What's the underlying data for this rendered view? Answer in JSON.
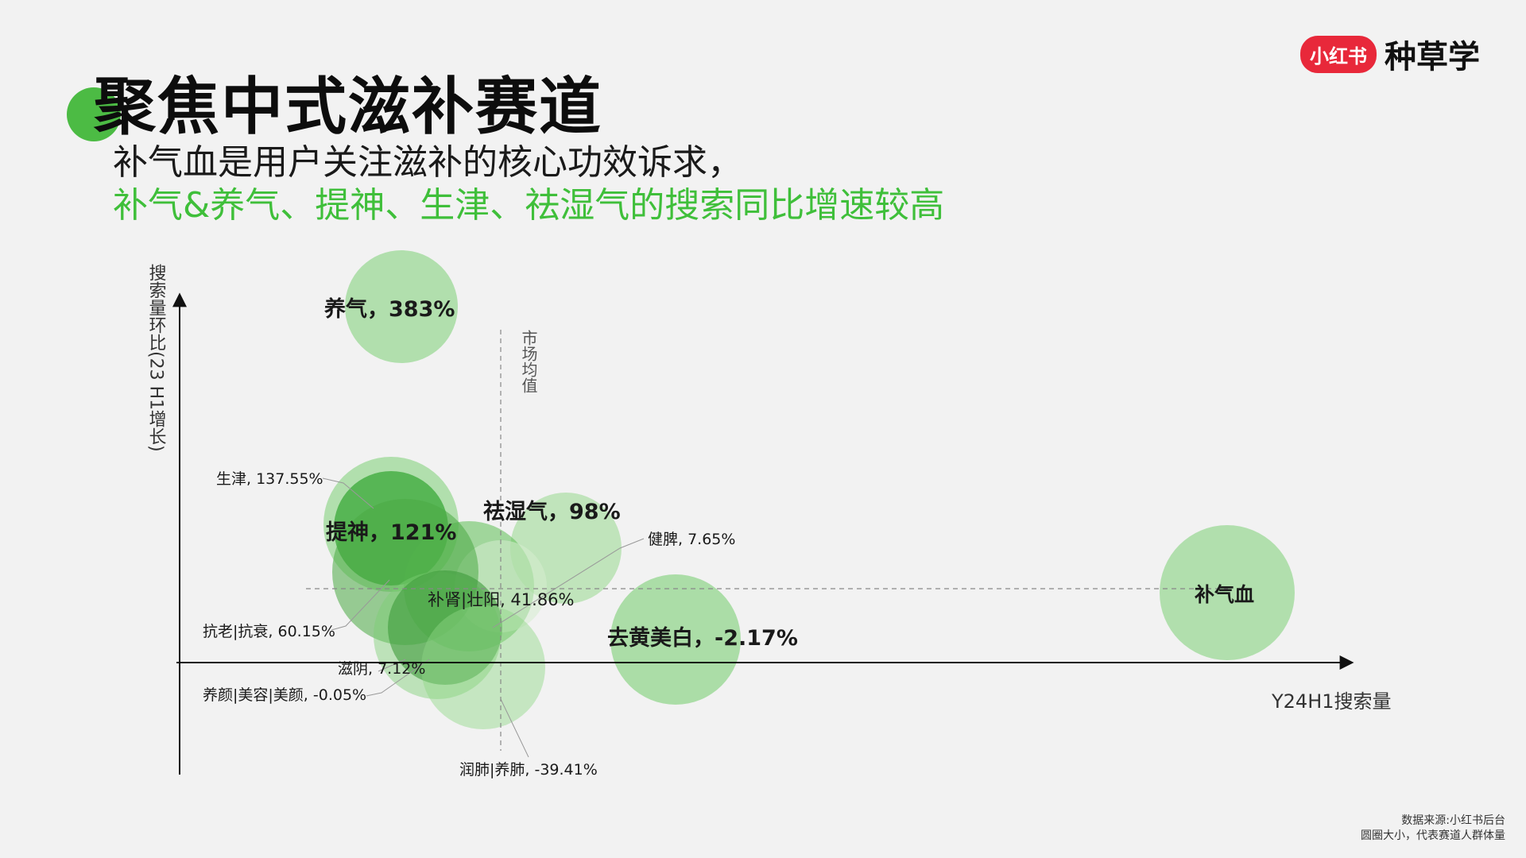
{
  "header": {
    "title": "聚焦中式滋补赛道",
    "subtitle_line1": "补气血是用户关注滋补的核心功效诉求，",
    "subtitle_line2": "补气&养气、提神、生津、祛湿气的搜索同比增速较高"
  },
  "brand": {
    "badge": "小红书",
    "name": "种草学"
  },
  "footnote": {
    "source": "数据来源:小红书后台",
    "note": "圆圈大小，代表赛道人群体量"
  },
  "colors": {
    "accent_green": "#3fbf3a",
    "brand_red": "#e8283a"
  },
  "chart_data": {
    "type": "scatter",
    "xlabel": "Y24H1搜索量",
    "ylabel": "搜索量环比(23 H1增长)",
    "reference_line_label": "市场均值",
    "points": [
      {
        "label": "养气，383%",
        "growth_pct": 383,
        "bold": true
      },
      {
        "label": "生津, 137.55%",
        "growth_pct": 137.55,
        "bold": false
      },
      {
        "label": "提神，121%",
        "growth_pct": 121,
        "bold": true
      },
      {
        "label": "祛湿气，98%",
        "growth_pct": 98,
        "bold": true
      },
      {
        "label": "健脾, 7.65%",
        "growth_pct": 7.65,
        "bold": false
      },
      {
        "label": "补肾|壮阳, 41.86%",
        "growth_pct": 41.86,
        "bold": false
      },
      {
        "label": "抗老|抗衰, 60.15%",
        "growth_pct": 60.15,
        "bold": false
      },
      {
        "label": "滋阴, 7.12%",
        "growth_pct": 7.12,
        "bold": false
      },
      {
        "label": "养颜|美容|美颜, -0.05%",
        "growth_pct": -0.05,
        "bold": false
      },
      {
        "label": "润肺|养肺, -39.41%",
        "growth_pct": -39.41,
        "bold": false
      },
      {
        "label": "去黄美白，-2.17%",
        "growth_pct": -2.17,
        "bold": true
      },
      {
        "label": "补气血",
        "growth_pct": null,
        "bold": true
      }
    ]
  }
}
